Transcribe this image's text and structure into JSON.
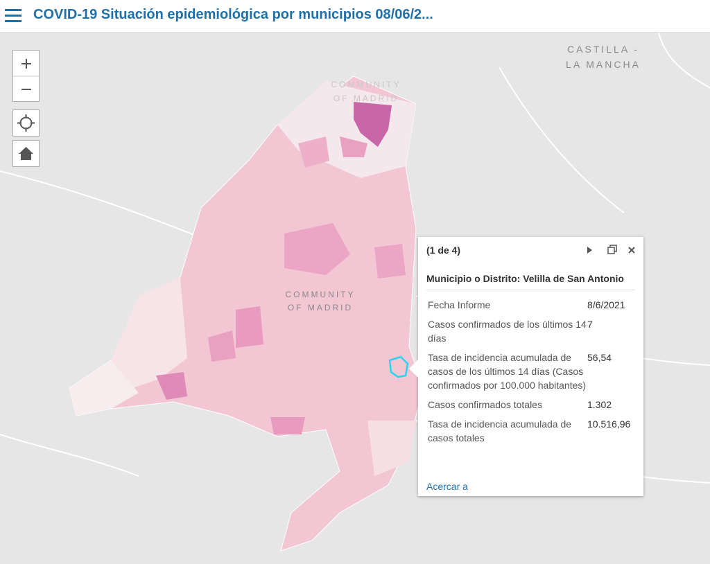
{
  "header": {
    "title": "COVID-19 Situación epidemiológica por municipios 08/06/2..."
  },
  "map_labels": [
    {
      "lines": [
        "CASTILLA -",
        "LA MANCHA"
      ]
    },
    {
      "lines": [
        "COMMUNITY",
        "OF MADRID"
      ]
    },
    {
      "lines": [
        "COMMUNITY",
        "OF MADRID"
      ]
    }
  ],
  "popup": {
    "count": "(1 de 4)",
    "title": "Municipio o Distrito: Velilla de San Antonio",
    "rows": [
      [
        "Fecha Informe",
        "8/6/2021"
      ],
      [
        "Casos confirmados de los últimos 14 días",
        "7"
      ],
      [
        "Tasa de incidencia acumulada de casos de los últimos 14 días (Casos confirmados por 100.000 habitantes)",
        "56,54"
      ],
      [
        "Casos confirmados totales",
        "1.302"
      ],
      [
        "Tasa de incidencia acumulada de casos totales",
        "10.516,96"
      ]
    ],
    "action": "Acercar a"
  }
}
